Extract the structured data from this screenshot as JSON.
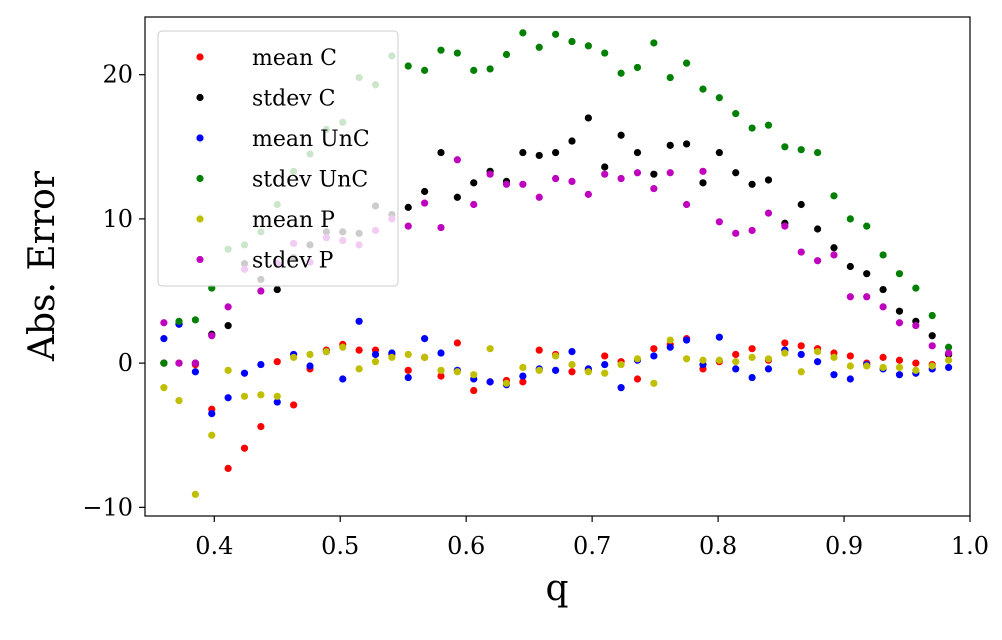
{
  "chart_data": {
    "type": "scatter",
    "title": "",
    "xlabel": "q",
    "ylabel": "Abs. Error",
    "xlim": [
      0.345,
      1.0
    ],
    "ylim": [
      -10.6,
      24.0
    ],
    "grid": false,
    "legend_position": "top-left",
    "x_ticks": [
      0.4,
      0.5,
      0.6,
      0.7,
      0.8,
      0.9,
      1.0
    ],
    "x_tick_labels": [
      "0.4",
      "0.5",
      "0.6",
      "0.7",
      "0.8",
      "0.9",
      "1.0"
    ],
    "y_ticks": [
      -10,
      0,
      10,
      20
    ],
    "y_tick_labels": [
      "−10",
      "0",
      "10",
      "20"
    ],
    "x": [
      0.36,
      0.372,
      0.385,
      0.398,
      0.411,
      0.424,
      0.437,
      0.45,
      0.463,
      0.476,
      0.489,
      0.502,
      0.515,
      0.528,
      0.541,
      0.554,
      0.567,
      0.58,
      0.593,
      0.606,
      0.619,
      0.632,
      0.645,
      0.658,
      0.671,
      0.684,
      0.697,
      0.71,
      0.723,
      0.736,
      0.749,
      0.762,
      0.775,
      0.788,
      0.801,
      0.814,
      0.827,
      0.84,
      0.853,
      0.866,
      0.879,
      0.892,
      0.905,
      0.918,
      0.931,
      0.944,
      0.957,
      0.97,
      0.983
    ],
    "series": [
      {
        "name": "mean C",
        "color": "#ff0000",
        "values": [
          0.0,
          0.0,
          -0.1,
          -3.2,
          -7.3,
          -5.9,
          -4.4,
          0.1,
          -2.9,
          -0.4,
          0.9,
          1.3,
          0.9,
          0.9,
          0.6,
          -0.5,
          0.4,
          -0.9,
          1.4,
          -1.9,
          -1.3,
          -1.2,
          -1.3,
          0.9,
          0.6,
          -0.6,
          -0.5,
          0.5,
          0.1,
          -1.1,
          1.0,
          1.3,
          1.7,
          -0.4,
          0.1,
          0.6,
          1.0,
          0.2,
          1.4,
          1.2,
          1.0,
          0.7,
          0.5,
          0.0,
          0.4,
          0.2,
          0.0,
          -0.1,
          0.6
        ]
      },
      {
        "name": "stdev C",
        "color": "#000000",
        "values": [
          0.0,
          2.7,
          0.0,
          2.0,
          2.6,
          6.9,
          5.8,
          5.1,
          7.3,
          8.2,
          9.1,
          9.1,
          9.0,
          10.9,
          10.3,
          10.8,
          11.9,
          14.6,
          11.5,
          12.5,
          13.3,
          12.6,
          14.6,
          14.4,
          14.6,
          15.4,
          17.0,
          13.6,
          15.8,
          14.6,
          13.1,
          15.1,
          15.2,
          12.5,
          14.6,
          13.2,
          12.4,
          12.7,
          9.7,
          11.0,
          9.3,
          8.0,
          6.7,
          6.2,
          5.1,
          3.6,
          2.9,
          1.9,
          0.6
        ]
      },
      {
        "name": "mean UnC",
        "color": "#0000ff",
        "values": [
          1.7,
          2.7,
          -0.6,
          -3.5,
          -2.4,
          -0.7,
          -0.1,
          -2.7,
          0.6,
          -0.2,
          0.8,
          -1.1,
          2.9,
          0.6,
          0.7,
          -1.0,
          1.7,
          0.7,
          -0.5,
          -1.1,
          -1.3,
          -1.5,
          -0.9,
          -0.4,
          -0.5,
          0.8,
          -0.4,
          -0.1,
          -1.7,
          0.2,
          0.5,
          1.1,
          1.6,
          -0.1,
          1.8,
          -0.4,
          -1.0,
          -0.4,
          0.9,
          0.6,
          0.1,
          -0.8,
          -1.1,
          -0.1,
          -0.4,
          -0.8,
          -0.7,
          -0.4,
          -0.3
        ]
      },
      {
        "name": "stdev UnC",
        "color": "#008000",
        "values": [
          0.0,
          2.9,
          3.0,
          5.2,
          7.9,
          8.2,
          9.1,
          11.0,
          13.3,
          14.5,
          16.2,
          16.7,
          19.8,
          19.3,
          21.3,
          20.6,
          20.3,
          21.7,
          21.5,
          20.3,
          20.4,
          21.4,
          22.9,
          21.9,
          22.8,
          22.3,
          22.0,
          21.5,
          20.1,
          20.5,
          22.2,
          19.8,
          20.8,
          19.0,
          18.4,
          17.3,
          16.3,
          16.5,
          15.0,
          14.8,
          14.6,
          11.6,
          10.0,
          9.5,
          7.5,
          6.2,
          5.2,
          3.3,
          1.1
        ]
      },
      {
        "name": "mean P",
        "color": "#bfbf00",
        "values": [
          -1.7,
          -2.6,
          -9.1,
          -5.0,
          -0.5,
          -2.3,
          -2.2,
          -2.3,
          0.4,
          0.6,
          0.8,
          1.1,
          -0.4,
          0.1,
          0.4,
          0.6,
          0.4,
          -0.5,
          -0.6,
          -0.8,
          1.0,
          -1.4,
          -0.3,
          -0.5,
          0.5,
          -0.1,
          -0.6,
          -0.7,
          -0.1,
          0.3,
          -1.4,
          1.6,
          0.3,
          0.2,
          0.2,
          0.1,
          0.4,
          0.3,
          0.7,
          -0.6,
          0.8,
          0.4,
          -0.2,
          -0.2,
          -0.3,
          -0.3,
          -0.5,
          -0.2,
          0.2
        ]
      },
      {
        "name": "stdev P",
        "color": "#bf00bf",
        "values": [
          2.8,
          0.0,
          0.0,
          1.9,
          3.9,
          6.5,
          5.0,
          6.9,
          8.3,
          7.0,
          8.7,
          8.5,
          8.2,
          9.2,
          10.0,
          9.5,
          11.1,
          9.4,
          14.1,
          11.0,
          13.1,
          12.4,
          12.4,
          11.5,
          12.8,
          12.6,
          11.7,
          13.1,
          12.8,
          13.2,
          12.1,
          13.2,
          11.0,
          13.3,
          9.8,
          9.0,
          9.2,
          10.4,
          9.5,
          7.7,
          7.1,
          7.5,
          4.6,
          4.6,
          3.9,
          2.8,
          2.6,
          1.2,
          0.7
        ]
      }
    ]
  }
}
